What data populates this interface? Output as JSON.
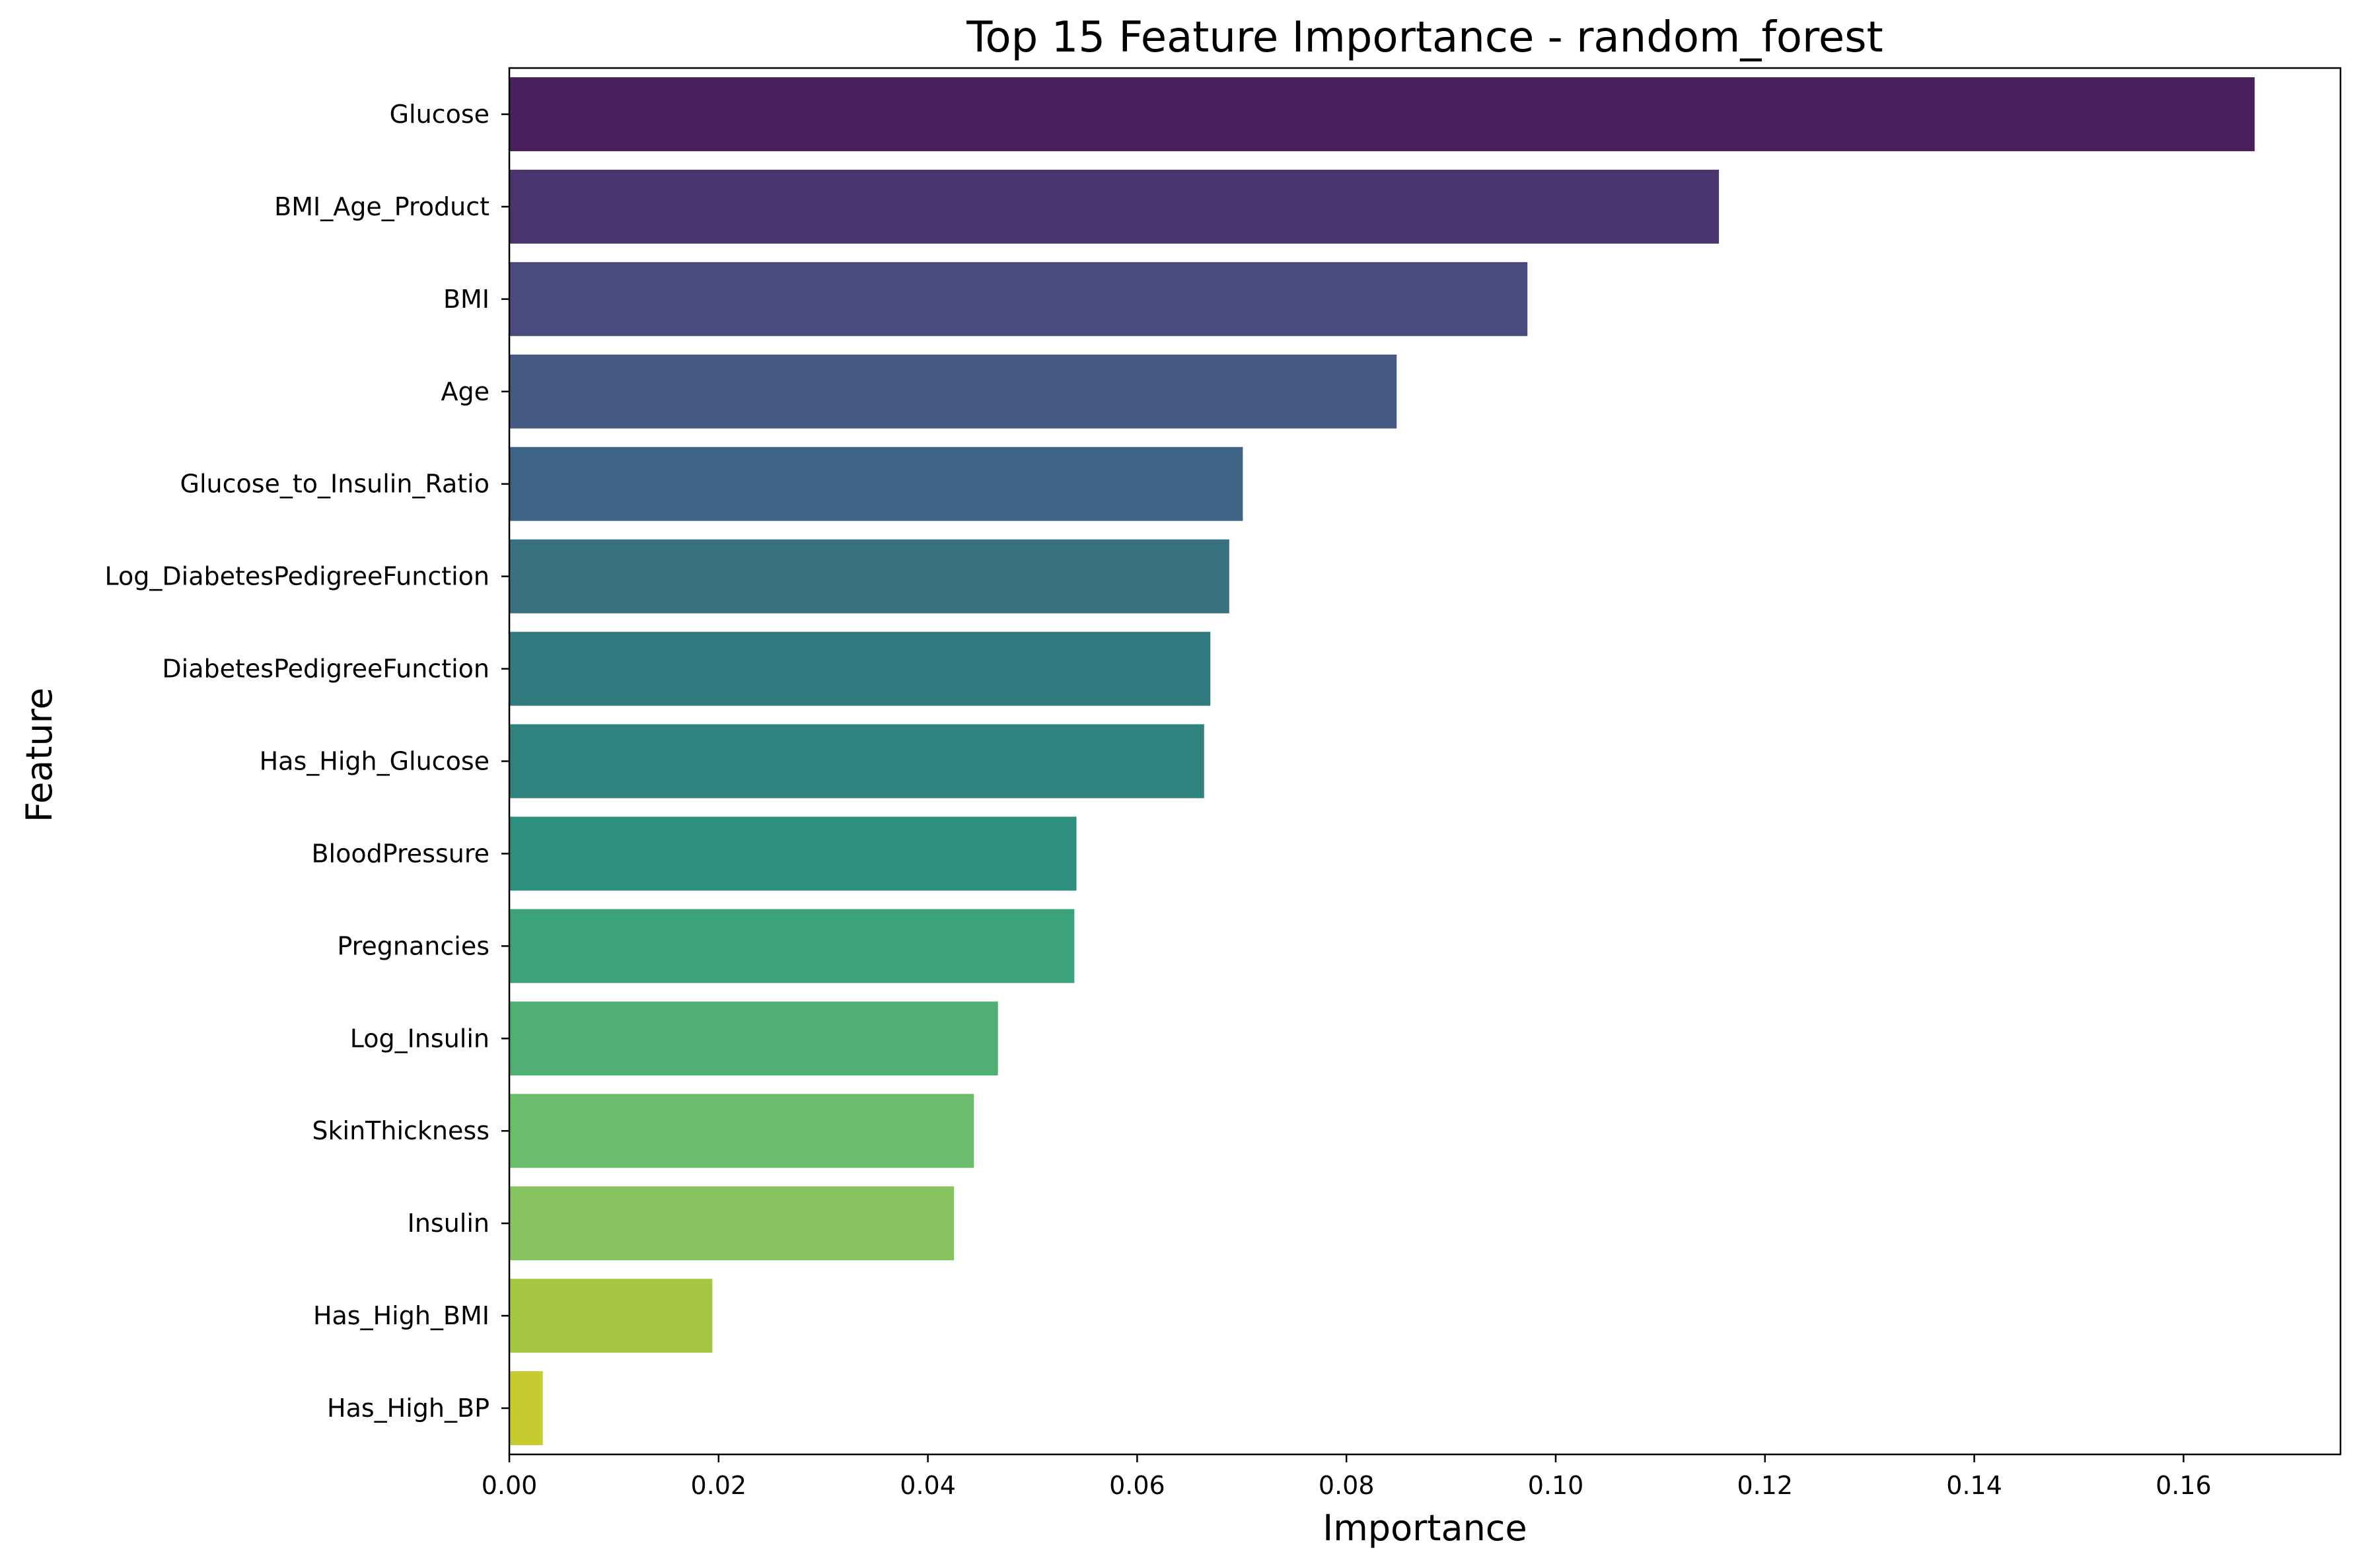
{
  "chart_data": {
    "type": "bar",
    "orientation": "horizontal",
    "title": "Top 15 Feature Importance - random_forest",
    "xlabel": "Importance",
    "ylabel": "Feature",
    "xlim": [
      0,
      0.175
    ],
    "x_ticks": [
      0.0,
      0.02,
      0.04,
      0.06,
      0.08,
      0.1,
      0.12,
      0.14,
      0.16
    ],
    "x_tick_labels": [
      "0.00",
      "0.02",
      "0.04",
      "0.06",
      "0.08",
      "0.10",
      "0.12",
      "0.14",
      "0.16"
    ],
    "grid": false,
    "legend": "none",
    "categories": [
      "Glucose",
      "BMI_Age_Product",
      "BMI",
      "Age",
      "Glucose_to_Insulin_Ratio",
      "Log_DiabetesPedigreeFunction",
      "DiabetesPedigreeFunction",
      "Has_High_Glucose",
      "BloodPressure",
      "Pregnancies",
      "Log_Insulin",
      "SkinThickness",
      "Insulin",
      "Has_High_BMI",
      "Has_High_BP"
    ],
    "values": [
      0.1668,
      0.1156,
      0.0973,
      0.0848,
      0.0701,
      0.0688,
      0.067,
      0.0664,
      0.0542,
      0.054,
      0.0467,
      0.0444,
      0.0425,
      0.0194,
      0.0032
    ],
    "colors": [
      "#48205e",
      "#4a356f",
      "#494a7d",
      "#465980",
      "#3e6485",
      "#387180",
      "#32787f",
      "#2f827e",
      "#2d8f7e",
      "#3ba27c",
      "#50b073",
      "#6abd6a",
      "#87c35e",
      "#a5c743",
      "#c6cc2f"
    ]
  }
}
